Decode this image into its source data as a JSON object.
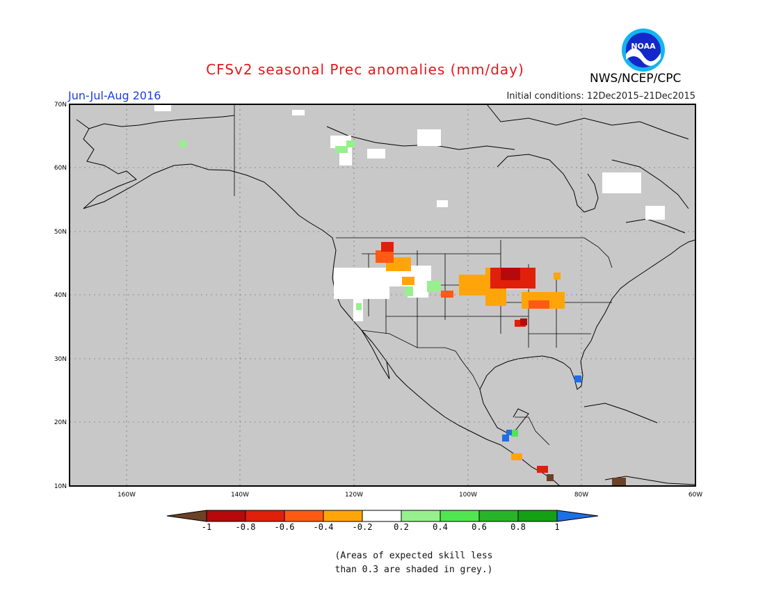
{
  "title": "CFSv2 seasonal Prec anomalies (mm/day)",
  "season": "Jun-Jul-Aug 2016",
  "initial_conditions": "Initial conditions: 12Dec2015–21Dec2015",
  "agency": "NWS/NCEP/CPC",
  "logo_icon": "noaa-logo-icon",
  "logo_text": "NOAA",
  "map": {
    "lat_labels": [
      "70N",
      "60N",
      "50N",
      "40N",
      "30N",
      "20N",
      "10N"
    ],
    "lon_labels": [
      "160W",
      "140W",
      "120W",
      "100W",
      "80W",
      "60W"
    ],
    "background_color": "#c8c8c8"
  },
  "legend": {
    "labels": [
      "-1",
      "-0.8",
      "-0.6",
      "-0.4",
      "-0.2",
      "0.2",
      "0.4",
      "0.6",
      "0.8",
      "1"
    ],
    "colors": [
      "#6b4226",
      "#b40a0a",
      "#e0200a",
      "#ff5a14",
      "#ffa50a",
      "#ffffff",
      "#96f08c",
      "#50e650",
      "#28b428",
      "#14a014",
      "#1e6ee6"
    ]
  },
  "note": {
    "line1": "(Areas of expected skill less",
    "line2": "than 0.3 are shaded in grey.)"
  }
}
